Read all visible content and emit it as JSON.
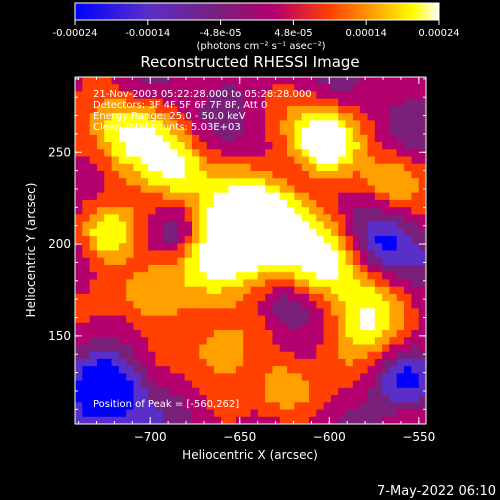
{
  "colorbar": {
    "ticks": [
      "-0.00024",
      "-0.00014",
      "-4.8e-05",
      "4.8e-05",
      "0.00014",
      "0.00024"
    ],
    "unit_label": "(photons cm⁻² s⁻¹ asec⁻²)"
  },
  "chart_data": {
    "type": "heatmap",
    "title": "Reconstructed RHESSI Image",
    "xlabel": "Heliocentric X (arcsec)",
    "ylabel": "Heliocentric Y (arcsec)",
    "xlim": [
      -742,
      -546
    ],
    "ylim": [
      102,
      291
    ],
    "x_ticks": [
      {
        "value": -700,
        "label": "−700"
      },
      {
        "value": -650,
        "label": "−650"
      },
      {
        "value": -600,
        "label": "−600"
      },
      {
        "value": -550,
        "label": "−550"
      }
    ],
    "y_ticks": [
      {
        "value": 150,
        "label": "150"
      },
      {
        "value": 200,
        "label": "200"
      },
      {
        "value": 250,
        "label": "250"
      }
    ],
    "color_range": [
      -0.00024,
      0.00024
    ],
    "colormap": [
      "#0000ff",
      "#5a2ec8",
      "#7a1f7a",
      "#b4006e",
      "#ff4000",
      "#ffa000",
      "#ffff00",
      "#ffffff"
    ],
    "annotations": [
      "21-Nov-2003 05:22:28.000 to 05:28:28.000",
      "Detectors: 3F 4F 5F 6F 7F 8F, Att 0",
      "Energy Range: 25.0 - 50.0 keV",
      "Clean     Total counts: 5.03E+03"
    ],
    "peak_label": "Position of Peak = [-560,262]",
    "peak": [
      -560,
      262
    ]
  },
  "footer": {
    "timestamp": "7-May-2022 06:10"
  }
}
